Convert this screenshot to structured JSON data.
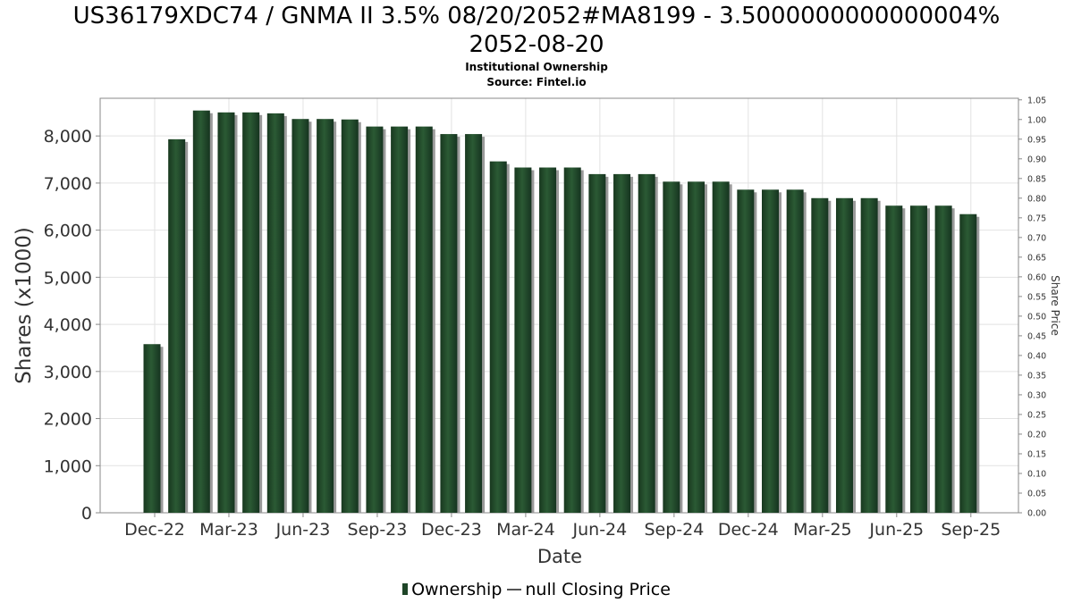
{
  "chart_data": {
    "type": "bar",
    "title": "US36179XDC74 / GNMA II 3.5% 08/20/2052#MA8199 - 3.5000000000000004%",
    "title_line2": "2052-08-20",
    "subtitle": "Institutional Ownership",
    "source": "Source: Fintel.io",
    "xlabel": "Date",
    "ylabel": "Shares (x1000)",
    "y2label": "Share Price",
    "ylim": [
      0,
      8800
    ],
    "y2lim": [
      0,
      1.05
    ],
    "y_ticks": [
      0,
      1000,
      2000,
      3000,
      4000,
      5000,
      6000,
      7000,
      8000
    ],
    "y_tick_labels": [
      "0",
      "1,000",
      "2,000",
      "3,000",
      "4,000",
      "5,000",
      "6,000",
      "7,000",
      "8,000"
    ],
    "y2_tick_labels": [
      "0.00",
      "0.05",
      "0.10",
      "0.15",
      "0.20",
      "0.25",
      "0.30",
      "0.35",
      "0.40",
      "0.45",
      "0.50",
      "0.55",
      "0.60",
      "0.65",
      "0.70",
      "0.75",
      "0.80",
      "0.85",
      "0.90",
      "0.95",
      "1.00",
      "1.05"
    ],
    "x_tick_labels": [
      "Dec-22",
      "Mar-23",
      "Jun-23",
      "Sep-23",
      "Dec-23",
      "Mar-24",
      "Jun-24",
      "Sep-24",
      "Dec-24",
      "Mar-25",
      "Jun-25",
      "Sep-25"
    ],
    "x_tick_bar_index": [
      0,
      3,
      6,
      9,
      12,
      15,
      18,
      21,
      24,
      27,
      30,
      33
    ],
    "grid": true,
    "legend_position": "bottom-center",
    "legend": [
      "Ownership",
      "null Closing Price"
    ],
    "series": [
      {
        "name": "Ownership",
        "color": "#1f4628",
        "values": [
          3580,
          7930,
          8540,
          8500,
          8500,
          8480,
          8360,
          8360,
          8350,
          8200,
          8200,
          8200,
          8040,
          8040,
          7460,
          7330,
          7330,
          7330,
          7190,
          7190,
          7190,
          7030,
          7030,
          7030,
          6860,
          6860,
          6860,
          6680,
          6680,
          6680,
          6520,
          6520,
          6520,
          6340
        ]
      }
    ]
  }
}
